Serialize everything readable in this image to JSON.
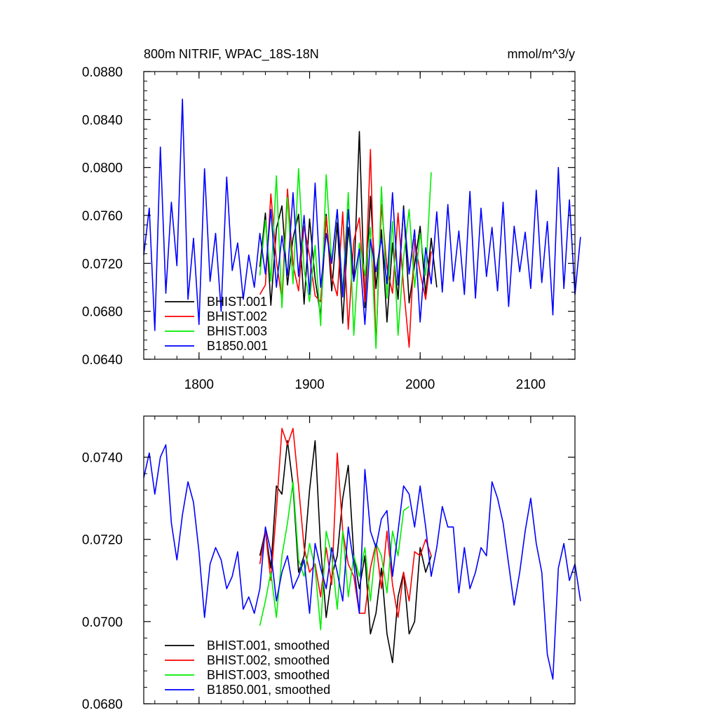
{
  "chart_data": [
    {
      "type": "line",
      "title": "800m NITRIF, WPAC_18S-18N",
      "units": "mmol/m^3/y",
      "xlim": [
        1750,
        2140
      ],
      "ylim": [
        0.064,
        0.088
      ],
      "x_ticks": [
        1800,
        1900,
        2000,
        2100
      ],
      "x_tick_labels": [
        "1800",
        "1900",
        "2000",
        "2100"
      ],
      "y_ticks": [
        0.064,
        0.068,
        0.072,
        0.076,
        0.08,
        0.084,
        0.088
      ],
      "y_tick_labels": [
        "0.0640",
        "0.0680",
        "0.0720",
        "0.0760",
        "0.0800",
        "0.0840",
        "0.0880"
      ],
      "grid": false,
      "legend_position": "bottom-left",
      "series": [
        {
          "name": "BHIST.001",
          "color": "#000000",
          "x_start": 1855,
          "x_step": 5,
          "values": [
            0.0717,
            0.0762,
            0.0685,
            0.0749,
            0.0768,
            0.0702,
            0.0741,
            0.0761,
            0.0686,
            0.0757,
            0.0707,
            0.0676,
            0.0761,
            0.0697,
            0.0754,
            0.067,
            0.075,
            0.0705,
            0.083,
            0.0683,
            0.0776,
            0.0699,
            0.0748,
            0.0671,
            0.0737,
            0.069,
            0.0768,
            0.0687,
            0.0719,
            0.0751,
            0.0694,
            0.0741,
            0.07
          ]
        },
        {
          "name": "BHIST.002",
          "color": "#ff0000",
          "x_start": 1855,
          "x_step": 5,
          "values": [
            0.0694,
            0.0702,
            0.0778,
            0.0722,
            0.069,
            0.0782,
            0.0719,
            0.0697,
            0.0751,
            0.0726,
            0.0693,
            0.0688,
            0.0759,
            0.0709,
            0.0693,
            0.0763,
            0.0665,
            0.0739,
            0.0758,
            0.0688,
            0.0815,
            0.0651,
            0.0769,
            0.0716,
            0.0695,
            0.0762,
            0.07,
            0.065,
            0.074,
            0.0712,
            0.069,
            0.073
          ]
        },
        {
          "name": "BHIST.003",
          "color": "#00ee00",
          "x_start": 1855,
          "x_step": 5,
          "values": [
            0.071,
            0.0756,
            0.0705,
            0.0793,
            0.0683,
            0.0775,
            0.0703,
            0.0799,
            0.0715,
            0.0688,
            0.0735,
            0.0668,
            0.0794,
            0.072,
            0.0764,
            0.0695,
            0.0779,
            0.066,
            0.0737,
            0.071,
            0.075,
            0.0649,
            0.0784,
            0.0691,
            0.0755,
            0.066,
            0.0725,
            0.0765,
            0.07,
            0.0745,
            0.071,
            0.0796
          ]
        },
        {
          "name": "B1850.001",
          "color": "#0000ff",
          "x_start": 1750,
          "x_step": 5,
          "values": [
            0.0727,
            0.0766,
            0.0664,
            0.0817,
            0.0695,
            0.0771,
            0.0718,
            0.0857,
            0.069,
            0.0741,
            0.0669,
            0.0799,
            0.0705,
            0.0745,
            0.068,
            0.0792,
            0.0714,
            0.0737,
            0.069,
            0.0727,
            0.07,
            0.0745,
            0.0711,
            0.0765,
            0.07,
            0.0743,
            0.071,
            0.0779,
            0.0709,
            0.076,
            0.0694,
            0.0787,
            0.07,
            0.0745,
            0.072,
            0.0765,
            0.0692,
            0.0765,
            0.0705,
            0.0732,
            0.0669,
            0.074,
            0.0713,
            0.0741,
            0.0703,
            0.0779,
            0.0702,
            0.0765,
            0.0711,
            0.0748,
            0.0671,
            0.0733,
            0.0703,
            0.0763,
            0.0696,
            0.0769,
            0.0705,
            0.0747,
            0.0694,
            0.078,
            0.0691,
            0.0766,
            0.0709,
            0.075,
            0.0697,
            0.0771,
            0.0684,
            0.0751,
            0.0713,
            0.0746,
            0.0699,
            0.0781,
            0.0704,
            0.0755,
            0.0677,
            0.08,
            0.0699,
            0.0773,
            0.0694,
            0.0742
          ]
        }
      ]
    },
    {
      "type": "line",
      "xlim": [
        1750,
        2140
      ],
      "ylim": [
        0.068,
        0.075
      ],
      "x_ticks": [
        1800,
        1900,
        2000,
        2100
      ],
      "y_ticks": [
        0.068,
        0.07,
        0.072,
        0.074
      ],
      "y_tick_labels": [
        "0.0680",
        "0.0700",
        "0.0720",
        "0.0740"
      ],
      "grid": false,
      "legend_position": "bottom-left",
      "series": [
        {
          "name": "BHIST.001, smoothed",
          "color": "#000000",
          "x_start": 1855,
          "x_step": 5,
          "values": [
            0.0716,
            0.0722,
            0.0713,
            0.0733,
            0.0731,
            0.0744,
            0.0733,
            0.0712,
            0.0716,
            0.0732,
            0.0744,
            0.0718,
            0.0701,
            0.0711,
            0.0716,
            0.073,
            0.0738,
            0.0716,
            0.0708,
            0.0716,
            0.0697,
            0.0702,
            0.0713,
            0.0697,
            0.069,
            0.0706,
            0.0712,
            0.0697,
            0.07,
            0.0718,
            0.0712,
            0.0716
          ]
        },
        {
          "name": "BHIST.002, smoothed",
          "color": "#ff0000",
          "x_start": 1855,
          "x_step": 5,
          "values": [
            0.0714,
            0.0722,
            0.071,
            0.0727,
            0.0747,
            0.0743,
            0.0747,
            0.0733,
            0.0718,
            0.0712,
            0.0714,
            0.0706,
            0.0718,
            0.0709,
            0.0741,
            0.0722,
            0.0714,
            0.0711,
            0.0702,
            0.0702,
            0.0713,
            0.0719,
            0.0708,
            0.0722,
            0.0709,
            0.0701,
            0.0712,
            0.0705,
            0.0717,
            0.0716,
            0.072,
            0.0716
          ]
        },
        {
          "name": "BHIST.003, smoothed",
          "color": "#00ee00",
          "x_start": 1855,
          "x_step": 5,
          "values": [
            0.0699,
            0.0705,
            0.0712,
            0.0701,
            0.0716,
            0.0724,
            0.0734,
            0.0715,
            0.0711,
            0.0719,
            0.0713,
            0.0698,
            0.0722,
            0.0716,
            0.0703,
            0.0722,
            0.0706,
            0.0716,
            0.0711,
            0.0718,
            0.0705,
            0.0719,
            0.0716,
            0.0707,
            0.0722,
            0.0716,
            0.0727,
            0.0728
          ]
        },
        {
          "name": "B1850.001, smoothed",
          "color": "#0000ff",
          "x_start": 1750,
          "x_step": 5,
          "values": [
            0.0735,
            0.0741,
            0.0731,
            0.074,
            0.0743,
            0.0724,
            0.0715,
            0.0726,
            0.0734,
            0.0729,
            0.0717,
            0.0701,
            0.0714,
            0.0718,
            0.0715,
            0.0708,
            0.0711,
            0.0717,
            0.0703,
            0.0706,
            0.0702,
            0.0708,
            0.0723,
            0.0717,
            0.0705,
            0.0712,
            0.0716,
            0.0708,
            0.0711,
            0.0715,
            0.0702,
            0.0719,
            0.0713,
            0.0708,
            0.0718,
            0.0712,
            0.0705,
            0.0723,
            0.0714,
            0.0702,
            0.0737,
            0.0722,
            0.0718,
            0.0725,
            0.0727,
            0.0711,
            0.0722,
            0.0733,
            0.0731,
            0.0723,
            0.0733,
            0.0723,
            0.0711,
            0.0718,
            0.0728,
            0.0723,
            0.0723,
            0.0707,
            0.0718,
            0.0708,
            0.0712,
            0.0718,
            0.0716,
            0.0734,
            0.073,
            0.0724,
            0.0714,
            0.0704,
            0.0712,
            0.0722,
            0.073,
            0.0719,
            0.0712,
            0.0692,
            0.0686,
            0.0713,
            0.0719,
            0.071,
            0.0714,
            0.0705
          ]
        }
      ]
    }
  ]
}
